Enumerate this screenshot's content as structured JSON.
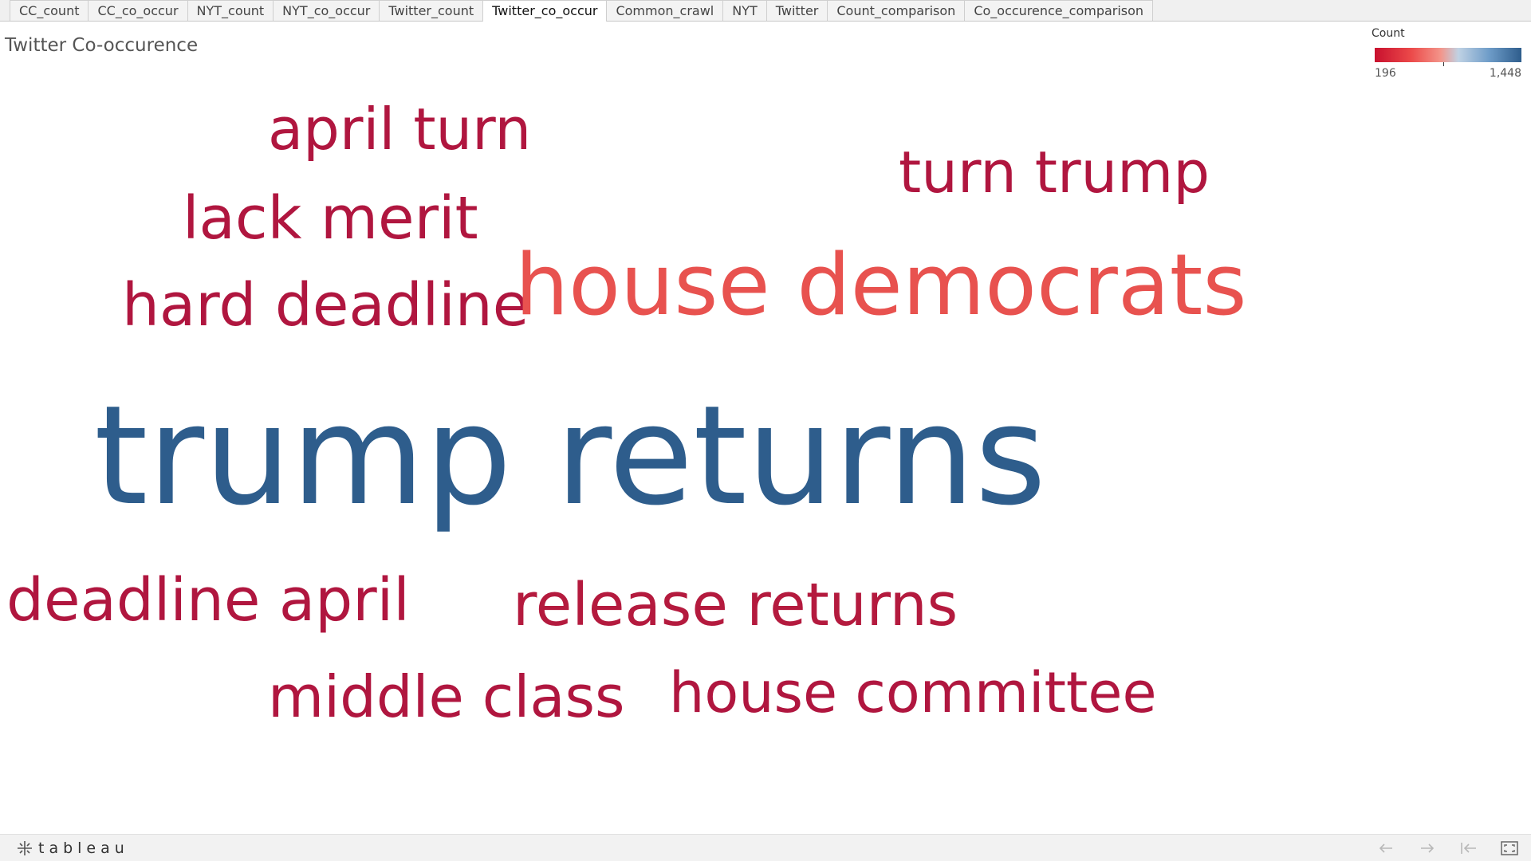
{
  "tabs": [
    {
      "label": "CC_count",
      "active": false
    },
    {
      "label": "CC_co_occur",
      "active": false
    },
    {
      "label": "NYT_count",
      "active": false
    },
    {
      "label": "NYT_co_occur",
      "active": false
    },
    {
      "label": "Twitter_count",
      "active": false
    },
    {
      "label": "Twitter_co_occur",
      "active": true
    },
    {
      "label": "Common_crawl",
      "active": false
    },
    {
      "label": "NYT",
      "active": false
    },
    {
      "label": "Twitter",
      "active": false
    },
    {
      "label": "Count_comparison",
      "active": false
    },
    {
      "label": "Co_occurence_comparison",
      "active": false
    }
  ],
  "sheet": {
    "title": "Twitter Co-occurence"
  },
  "legend": {
    "title": "Count",
    "min_label": "196",
    "max_label": "1,448",
    "min_color": "#c8102e",
    "mid_color": "#f3958a",
    "max_color": "#2e5d8c"
  },
  "words": [
    {
      "text": "april turn",
      "color": "#b0163f"
    },
    {
      "text": "turn trump",
      "color": "#b0163f"
    },
    {
      "text": "lack merit",
      "color": "#b0163f"
    },
    {
      "text": "hard deadline",
      "color": "#b0163f"
    },
    {
      "text": "house democrats",
      "color": "#e8524f"
    },
    {
      "text": "trump returns",
      "color": "#2e5d8c"
    },
    {
      "text": "deadline april",
      "color": "#b0163f"
    },
    {
      "text": "release returns",
      "color": "#b41a3e"
    },
    {
      "text": "middle class",
      "color": "#b0163f"
    },
    {
      "text": "house committee",
      "color": "#b0163f"
    }
  ],
  "footer": {
    "brand": "tableau",
    "icons": [
      "undo-icon",
      "redo-icon",
      "revert-icon",
      "fullscreen-icon"
    ]
  }
}
